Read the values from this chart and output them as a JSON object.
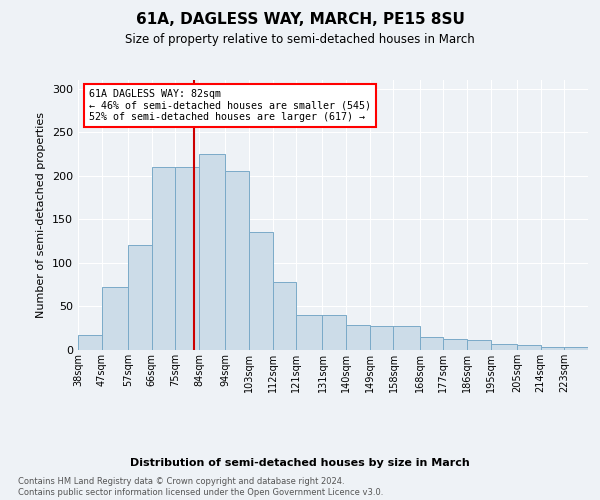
{
  "title": "61A, DAGLESS WAY, MARCH, PE15 8SU",
  "subtitle": "Size of property relative to semi-detached houses in March",
  "xlabel": "Distribution of semi-detached houses by size in March",
  "ylabel": "Number of semi-detached properties",
  "bar_color": "#ccdce8",
  "bar_edge_color": "#7aaac8",
  "vline_color": "#cc0000",
  "vline_x": 82,
  "annotation_text": "61A DAGLESS WAY: 82sqm\n← 46% of semi-detached houses are smaller (545)\n52% of semi-detached houses are larger (617) →",
  "footer": "Contains HM Land Registry data © Crown copyright and database right 2024.\nContains public sector information licensed under the Open Government Licence v3.0.",
  "bins": [
    38,
    47,
    57,
    66,
    75,
    84,
    94,
    103,
    112,
    121,
    131,
    140,
    149,
    158,
    168,
    177,
    186,
    195,
    205,
    214,
    223,
    232
  ],
  "bin_labels": [
    "38sqm",
    "47sqm",
    "57sqm",
    "66sqm",
    "75sqm",
    "84sqm",
    "94sqm",
    "103sqm",
    "112sqm",
    "121sqm",
    "131sqm",
    "140sqm",
    "149sqm",
    "158sqm",
    "168sqm",
    "177sqm",
    "186sqm",
    "195sqm",
    "205sqm",
    "214sqm",
    "223sqm"
  ],
  "counts": [
    17,
    72,
    120,
    210,
    210,
    225,
    205,
    135,
    78,
    40,
    40,
    29,
    28,
    28,
    15,
    13,
    11,
    7,
    6,
    4,
    3
  ],
  "ylim": [
    0,
    310
  ],
  "background_color": "#eef2f6",
  "plot_bg_color": "#eef2f6"
}
